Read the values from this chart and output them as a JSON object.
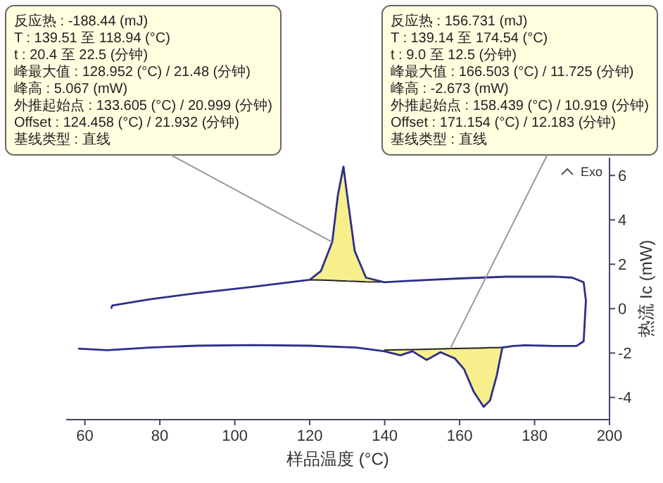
{
  "chart_data": {
    "type": "line",
    "xlabel": "样品温度 (°C)",
    "ylabel": "热流 Ic (mW)",
    "xlim": [
      55,
      200
    ],
    "ylim": [
      -5,
      6.8
    ],
    "xticks": [
      60,
      80,
      100,
      120,
      140,
      160,
      180,
      200
    ],
    "yticks": [
      -4,
      -2,
      0,
      2,
      4,
      6
    ],
    "grid": false,
    "marker": "none",
    "line_style": "solid",
    "annotations": [
      {
        "x": 126,
        "y": 3.0,
        "text": "反应热 : -188.44 (mJ)\nT : 139.51 至 118.94 (°C)\nt : 20.4 至 22.5 (分钟)\n峰最大值 : 128.952 (°C) / 21.48 (分钟)\n峰高 : 5.067 (mW)\n外推起始点 : 133.605 (°C) / 20.999 (分钟)\nOffset : 124.458 (°C) / 21.932 (分钟)\n基线类型 : 直线"
      },
      {
        "x": 157.5,
        "y": -1.8,
        "text": "反应热 : 156.731 (mJ)\nT : 139.14 至 174.54 (°C)\nt : 9.0 至 12.5 (分钟)\n峰最大值 : 166.503 (°C) / 11.725 (分钟)\n峰高 : -2.673 (mW)\n外推起始点 : 158.439 (°C) / 10.919 (分钟)\nOffset : 171.154 (°C) / 12.183 (分钟)\n基线类型 : 直线"
      },
      "Exo"
    ],
    "series": [
      {
        "type": "line",
        "color": "#222222",
        "x": [
          120,
          123,
          126,
          127.5,
          129,
          130,
          132,
          135,
          139
        ],
        "values": [
          1.3,
          1.29,
          1.27,
          1.26,
          1.25,
          1.24,
          1.23,
          1.21,
          1.2
        ],
        "upper": [
          1.3,
          1.7,
          3.0,
          5.1,
          6.4,
          5.1,
          2.6,
          1.4,
          1.2
        ],
        "lower": [
          1.3,
          1.29,
          1.27,
          1.26,
          1.25,
          1.24,
          1.23,
          1.21,
          1.2
        ]
      },
      {
        "type": "line",
        "color": "#222222",
        "x": [
          139.9,
          144.2,
          147.4,
          151.2,
          154.9,
          158.7,
          161.2,
          163.7,
          166.4,
          168.1,
          169.9,
          171.4
        ],
        "values": [
          -1.87,
          -1.85,
          -1.84,
          -1.83,
          -1.81,
          -1.8,
          -1.79,
          -1.78,
          -1.77,
          -1.76,
          -1.76,
          -1.75
        ],
        "lower": [
          -1.87,
          -2.1,
          -1.92,
          -2.31,
          -1.96,
          -2.24,
          -2.73,
          -3.72,
          -4.42,
          -4.14,
          -3.02,
          -1.75
        ],
        "upper": [
          -1.87,
          -1.85,
          -1.84,
          -1.83,
          -1.81,
          -1.8,
          -1.79,
          -1.78,
          -1.77,
          -1.76,
          -1.76,
          -1.75
        ]
      },
      {
        "color": "#2e2e8a",
        "x": [
          58.2,
          66,
          77.3,
          89.8,
          104.8,
          119.9,
          132.4,
          139.9,
          144.2,
          147.4,
          151.2,
          154.9,
          158.7,
          161.2,
          163.7,
          166.4,
          168.1,
          169.9,
          171.4,
          174.3,
          177.5,
          185,
          191.2,
          193.1,
          193.7,
          193.1,
          190,
          185,
          172.4,
          159.9,
          147.4,
          139.9,
          135,
          132,
          130,
          129,
          127.5,
          126,
          123,
          120,
          104.8,
          89.8,
          77.3,
          67.3,
          67
        ],
        "values": [
          -1.8,
          -1.87,
          -1.75,
          -1.67,
          -1.64,
          -1.67,
          -1.75,
          -1.92,
          -2.1,
          -1.92,
          -2.31,
          -1.96,
          -2.24,
          -2.73,
          -3.72,
          -4.42,
          -4.14,
          -3.02,
          -1.75,
          -1.68,
          -1.65,
          -1.68,
          -1.68,
          -1.47,
          0.35,
          1.19,
          1.4,
          1.44,
          1.44,
          1.36,
          1.26,
          1.19,
          1.4,
          2.6,
          5.1,
          6.4,
          5.1,
          3.0,
          1.7,
          1.3,
          0.98,
          0.7,
          0.42,
          0.14,
          0.0
        ]
      }
    ]
  }
}
